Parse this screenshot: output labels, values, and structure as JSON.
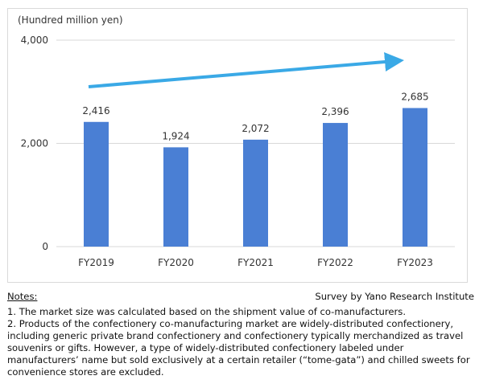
{
  "chart_data": {
    "type": "bar",
    "unit_label": "(Hundred million yen)",
    "categories": [
      "FY2019",
      "FY2020",
      "FY2021",
      "FY2022",
      "FY2023"
    ],
    "values": [
      2416,
      1924,
      2072,
      2396,
      2685
    ],
    "data_labels": [
      "2,416",
      "1,924",
      "2,072",
      "2,396",
      "2,685"
    ],
    "y_ticks": [
      0,
      2000,
      4000
    ],
    "y_tick_labels": [
      "0",
      "2,000",
      "4,000"
    ],
    "ylim": [
      0,
      4000
    ],
    "grid": true,
    "bar_color": "#4a7fd4",
    "trend_arrow_color": "#3aa9e6",
    "trend_arrow": "upward trend arrow across the bars"
  },
  "notes": {
    "title": "Notes:",
    "source": "Survey by Yano Research Institute",
    "items": [
      "1. The market size was calculated based on the shipment value of co-manufacturers.",
      "2. Products of the confectionery co-manufacturing market are widely-distributed confectionery, including generic private brand confectionery and confectionery typically merchandized as travel souvenirs or gifts. However, a type of widely-distributed confectionery labeled under manufacturers’ name but sold exclusively at a certain retailer (“tome-gata”) and chilled sweets for convenience stores are excluded."
    ]
  }
}
